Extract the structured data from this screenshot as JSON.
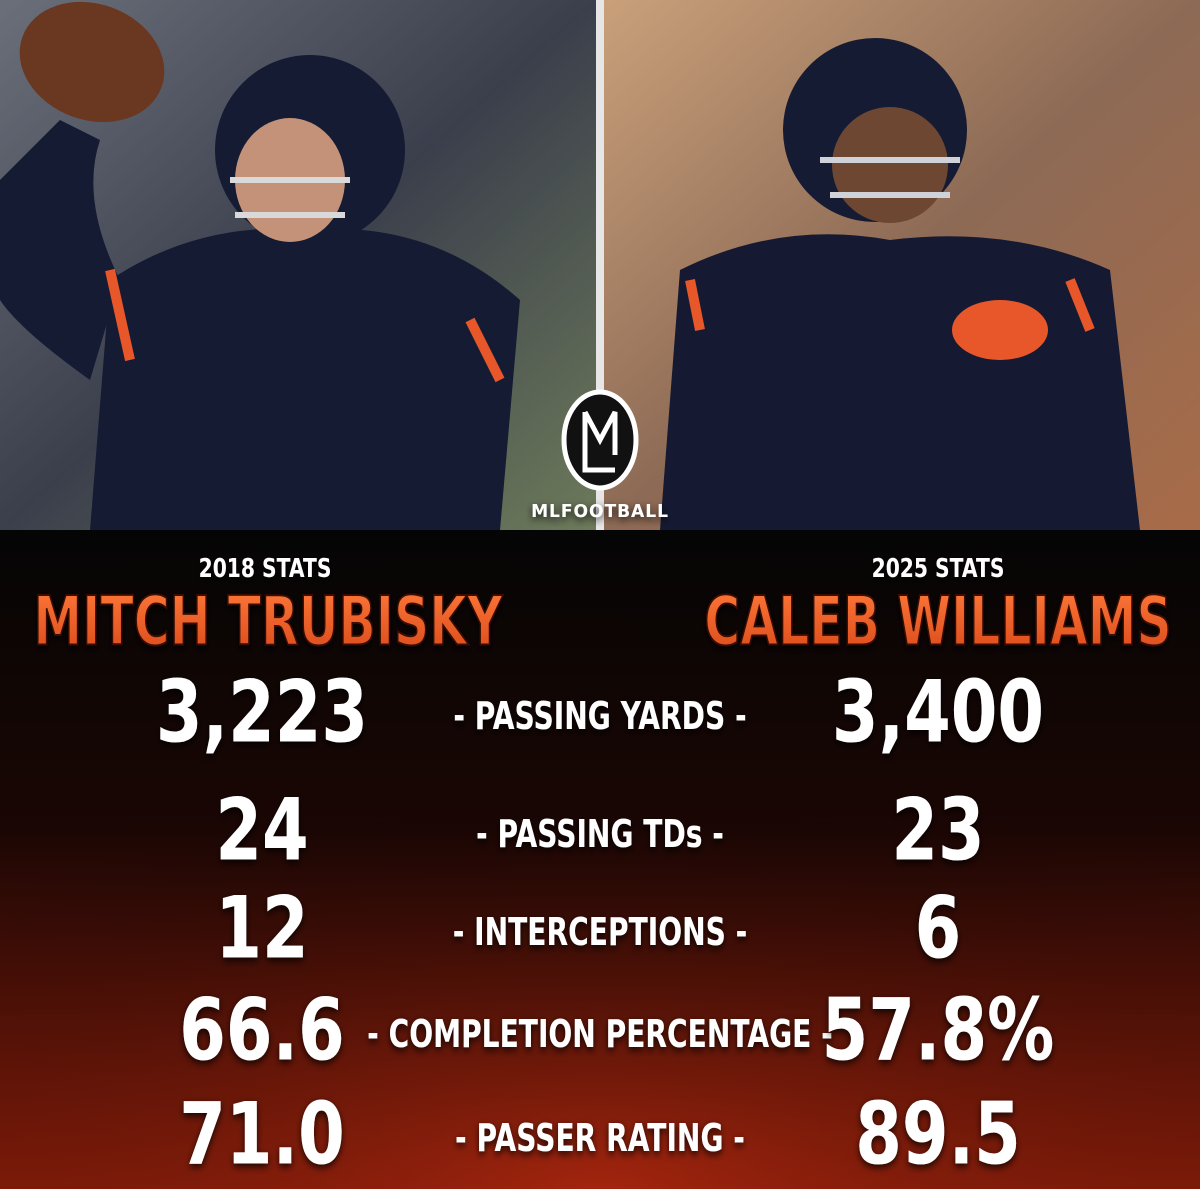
{
  "logo": {
    "text": "MLFOOTBALL"
  },
  "players": [
    {
      "season": "2018 STATS",
      "name": "MITCH TRUBISKY"
    },
    {
      "season": "2025 STATS",
      "name": "CALEB WILLIAMS"
    }
  ],
  "stats": [
    {
      "label": "- PASSING YARDS -",
      "left": "3,223",
      "right": "3,400"
    },
    {
      "label": "- PASSING TDs -",
      "left": "24",
      "right": "23"
    },
    {
      "label": "- INTERCEPTIONS -",
      "left": "12",
      "right": "6"
    },
    {
      "label": "- COMPLETION PERCENTAGE -",
      "left": "66.6",
      "right": "57.8%"
    },
    {
      "label": "- PASSER RATING -",
      "left": "71.0",
      "right": "89.5"
    }
  ]
}
